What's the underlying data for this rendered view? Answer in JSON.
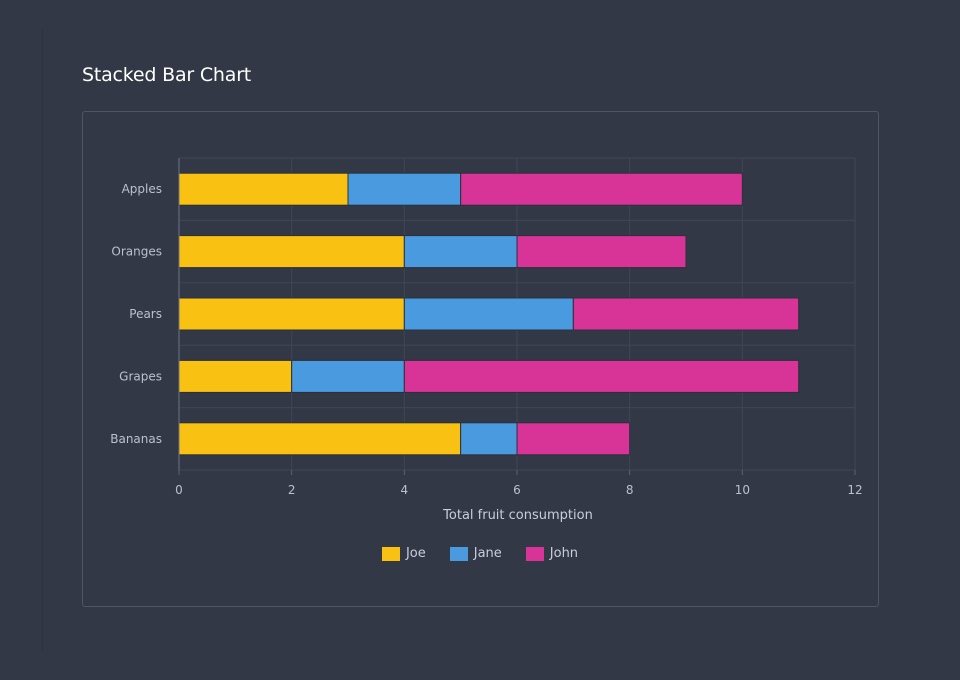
{
  "page": {
    "title": "Stacked Bar Chart"
  },
  "chart_data": {
    "type": "bar",
    "orientation": "horizontal",
    "stacked": true,
    "title": "Stacked Bar Chart",
    "xlabel": "Total fruit consumption",
    "ylabel": "",
    "categories": [
      "Apples",
      "Oranges",
      "Pears",
      "Grapes",
      "Bananas"
    ],
    "series": [
      {
        "name": "Joe",
        "color": "#f9c112",
        "values": [
          3,
          4,
          4,
          2,
          5
        ]
      },
      {
        "name": "Jane",
        "color": "#4a9ae0",
        "values": [
          2,
          2,
          3,
          2,
          1
        ]
      },
      {
        "name": "John",
        "color": "#d83397",
        "values": [
          5,
          3,
          4,
          7,
          2
        ]
      }
    ],
    "xlim": [
      0,
      12
    ],
    "xticks": [
      0,
      2,
      4,
      6,
      8,
      10,
      12
    ],
    "grid": true,
    "legend": "bottom-center"
  }
}
